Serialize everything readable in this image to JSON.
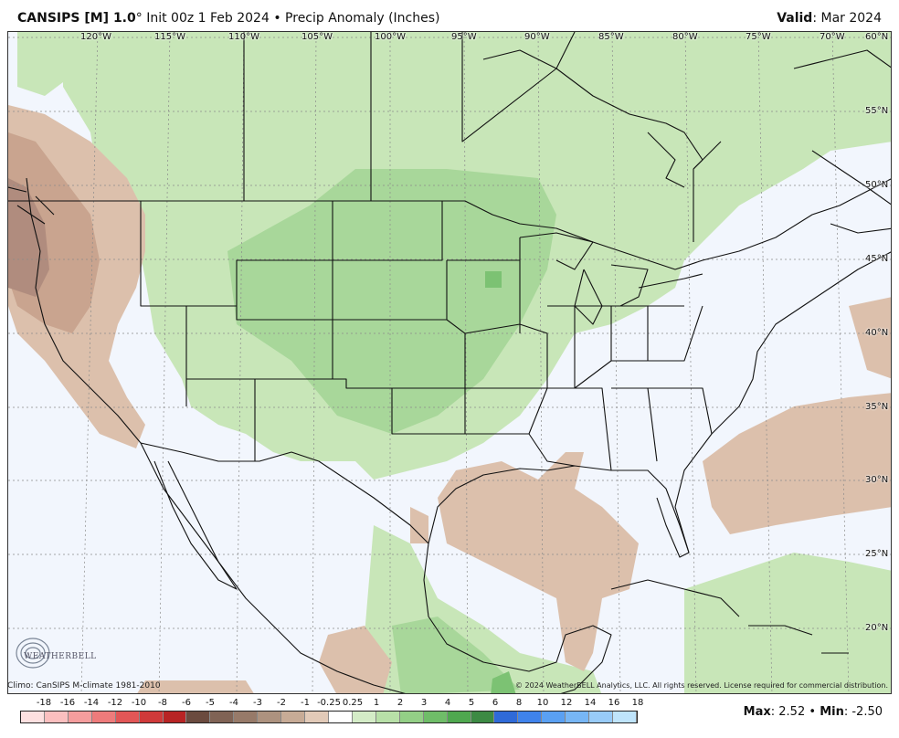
{
  "header": {
    "model": "CANSIPS [M] 1.0",
    "degree": "°",
    "init": "Init 00z 1 Feb 2024",
    "bullet": "•",
    "field": "Precip Anomaly (Inches)",
    "valid_label": "Valid",
    "valid_value": ": Mar 2024"
  },
  "lon_labels": [
    "120°W",
    "115°W",
    "110°W",
    "105°W",
    "100°W",
    "95°W",
    "90°W",
    "85°W",
    "80°W",
    "75°W",
    "70°W"
  ],
  "lat_labels": [
    "60°N",
    "55°N",
    "50°N",
    "45°N",
    "40°N",
    "35°N",
    "30°N",
    "25°N",
    "20°N"
  ],
  "colors": {
    "ocean": "#f2f6fd",
    "wet_light": "#c8e6b8",
    "wet_medium": "#a8d79a",
    "wet_dark": "#7cc273",
    "dry_light": "#dcc0ac",
    "dry_medium": "#c9a48f",
    "dry_dark": "#b08c7e",
    "border": "#111111"
  },
  "footer": {
    "climo": "Climo: CanSIPS M-climate 1981-2010",
    "copyright": "© 2024 WeatherBELL Analytics, LLC. All rights reserved. License required for commercial distribution."
  },
  "logo": {
    "text": "WEATHERBELL"
  },
  "legend": {
    "labels": [
      "-18",
      "-16",
      "-14",
      "-12",
      "-10",
      "-8",
      "-6",
      "-5",
      "-4",
      "-3",
      "-2",
      "-1",
      "-0.25",
      "0.25",
      "1",
      "2",
      "3",
      "4",
      "5",
      "6",
      "8",
      "10",
      "12",
      "14",
      "16",
      "18"
    ],
    "swatches": [
      "#fde0e0",
      "#fbbfbf",
      "#f59d9d",
      "#ee7b7b",
      "#e25656",
      "#d03a3a",
      "#b82424",
      "#6b4b3f",
      "#806355",
      "#977a69",
      "#ad927f",
      "#c7ab96",
      "#e2cab8",
      "#ffffff",
      "#d4ecc7",
      "#b8e0a8",
      "#93cf86",
      "#6fbd68",
      "#4fa84f",
      "#3d8a44",
      "#2f6ad8",
      "#3f83ec",
      "#5aa0f2",
      "#77b6f5",
      "#98cbf8",
      "#bfe4fb"
    ]
  },
  "stats": {
    "max_label": "Max",
    "max_value": "2.52",
    "min_label": "Min",
    "min_value": "-2.50"
  }
}
